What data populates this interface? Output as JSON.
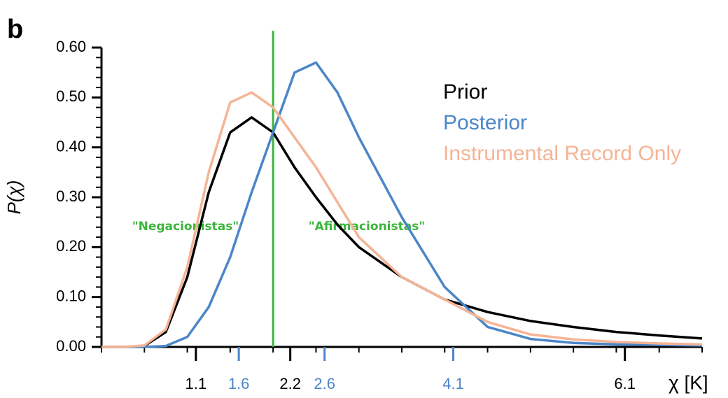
{
  "chart_data": {
    "type": "line",
    "panel_label": "b",
    "ylabel": "P(χ)",
    "xlabel": "χ [K]",
    "x": [
      0,
      0.25,
      0.5,
      0.75,
      1,
      1.25,
      1.5,
      1.75,
      2,
      2.25,
      2.5,
      2.75,
      3,
      3.5,
      4,
      4.5,
      5,
      5.5,
      6,
      6.5,
      7
    ],
    "series": [
      {
        "name": "Prior",
        "color": "#000000",
        "values": [
          0,
          0,
          0.002,
          0.03,
          0.14,
          0.31,
          0.43,
          0.46,
          0.43,
          0.36,
          0.3,
          0.245,
          0.2,
          0.14,
          0.095,
          0.07,
          0.052,
          0.04,
          0.03,
          0.023,
          0.017
        ]
      },
      {
        "name": "Posterior",
        "color": "#4a86c8",
        "values": [
          0,
          0,
          0,
          0.002,
          0.02,
          0.08,
          0.18,
          0.31,
          0.43,
          0.55,
          0.57,
          0.51,
          0.42,
          0.26,
          0.12,
          0.04,
          0.016,
          0.008,
          0.005,
          0.004,
          0.003
        ]
      },
      {
        "name": "Instrumental Record Only",
        "color": "#f5b496",
        "values": [
          0,
          0,
          0.003,
          0.035,
          0.16,
          0.35,
          0.49,
          0.51,
          0.48,
          0.42,
          0.36,
          0.29,
          0.22,
          0.14,
          0.095,
          0.05,
          0.025,
          0.015,
          0.01,
          0.007,
          0.005
        ]
      }
    ],
    "xlim": [
      0,
      7
    ],
    "ylim": [
      0,
      0.6
    ],
    "xticks": [
      1.1,
      1.6,
      2.2,
      2.6,
      4.1,
      6.1
    ],
    "xtick_colors": [
      "#000000",
      "#4a86c8",
      "#000000",
      "#4a86c8",
      "#4a86c8",
      "#000000"
    ],
    "yticks": [
      {
        "value": 0,
        "label": "0.00"
      },
      {
        "value": 0.1,
        "label": "0.10"
      },
      {
        "value": 0.2,
        "label": "0.20"
      },
      {
        "value": 0.3,
        "label": "0.30"
      },
      {
        "value": 0.4,
        "label": "0.40"
      },
      {
        "value": 0.5,
        "label": "0.50"
      },
      {
        "value": 0.6,
        "label": "0.60"
      }
    ],
    "yminor_step": 0.02,
    "xminor_step": 0.5,
    "vline": {
      "x": 2.0,
      "color": "#3cb43c"
    },
    "annotations": [
      "\"Negacionistas\"",
      "\"Afirmacionistas\""
    ]
  }
}
